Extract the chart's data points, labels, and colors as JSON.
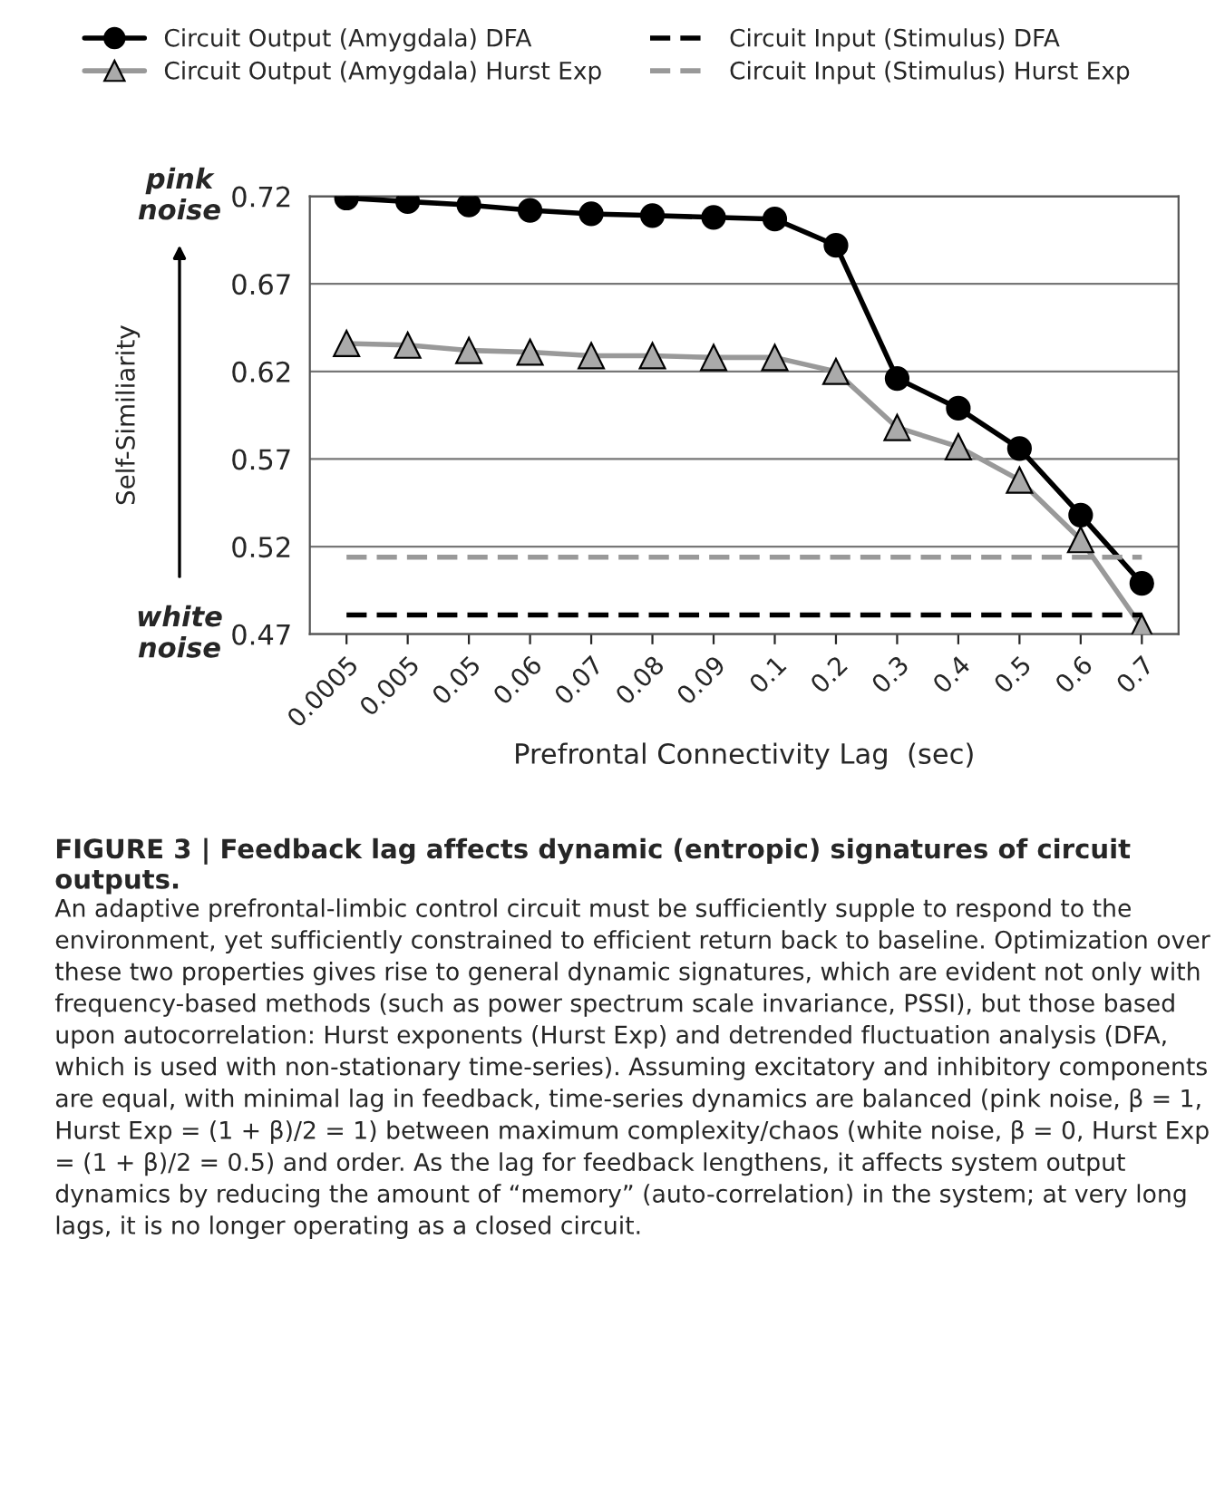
{
  "chart_data": {
    "type": "line",
    "ylabel": "Self-Similiarity",
    "xlabel": "Prefrontal Connectivity Lag  (sec)",
    "title": "FIGURE 3 | Feedback lag affects dynamic (entropic) signatures of circuit outputs.",
    "categories": [
      "0.0005",
      "0.005",
      "0.05",
      "0.06",
      "0.07",
      "0.08",
      "0.09",
      "0.1",
      "0.2",
      "0.3",
      "0.4",
      "0.5",
      "0.6",
      "0.7"
    ],
    "series": [
      {
        "name": "Circuit Output (Amygdala) DFA",
        "color": "#000000",
        "marker": "circle",
        "line_style": "solid",
        "values": [
          0.719,
          0.717,
          0.715,
          0.712,
          0.71,
          0.709,
          0.708,
          0.707,
          0.692,
          0.616,
          0.599,
          0.576,
          0.538,
          0.499
        ]
      },
      {
        "name": "Circuit Output (Amygdala) Hurst Exp",
        "color": "#999999",
        "marker": "triangle",
        "line_style": "solid",
        "values": [
          0.636,
          0.635,
          0.632,
          0.631,
          0.629,
          0.629,
          0.628,
          0.628,
          0.62,
          0.588,
          0.577,
          0.558,
          0.524,
          0.474
        ]
      },
      {
        "name": "Circuit Input (Stimulus) DFA",
        "color": "#000000",
        "marker": "none",
        "line_style": "dashed",
        "values": [
          0.481,
          0.481,
          0.481,
          0.481,
          0.481,
          0.481,
          0.481,
          0.481,
          0.481,
          0.481,
          0.481,
          0.481,
          0.481,
          0.481
        ]
      },
      {
        "name": "Circuit Input (Stimulus) Hurst Exp",
        "color": "#999999",
        "marker": "none",
        "line_style": "dashed",
        "values": [
          0.514,
          0.514,
          0.514,
          0.514,
          0.514,
          0.514,
          0.514,
          0.514,
          0.514,
          0.514,
          0.514,
          0.514,
          0.514,
          0.514
        ]
      }
    ],
    "ylim": [
      0.47,
      0.72
    ],
    "yticks": [
      0.47,
      0.52,
      0.57,
      0.62,
      0.67,
      0.72
    ],
    "grid": "y",
    "legend": "top",
    "annotations": [
      "pink noise",
      "white noise",
      "An adaptive prefrontal-limbic control circuit must be sufficiently supple to respond to the environment, yet sufficiently constrained to efficient return back to baseline. Optimization over these two properties gives rise to general dynamic signatures, which are evident not only with frequency-based methods (such as power spectrum scale invariance, PSSI), but those based upon autocorrelation: Hurst exponents (Hurst Exp) and detrended fluctuation analysis (DFA, which is used with non-stationary time-series). Assuming excitatory and inhibitory components are equal, with minimal lag in feedback, time-series dynamics are balanced (pink noise, β = 1, Hurst Exp = (1 + β)/2 = 1) between maximum complexity/chaos (white noise, β = 0, Hurst Exp = (1 + β)/2 = 0.5) and order. As the lag for feedback lengthens, it affects system output dynamics by reducing the amount of “memory” (auto-correlation) in the system; at very long lags, it is no longer operating as a closed circuit."
    ]
  }
}
